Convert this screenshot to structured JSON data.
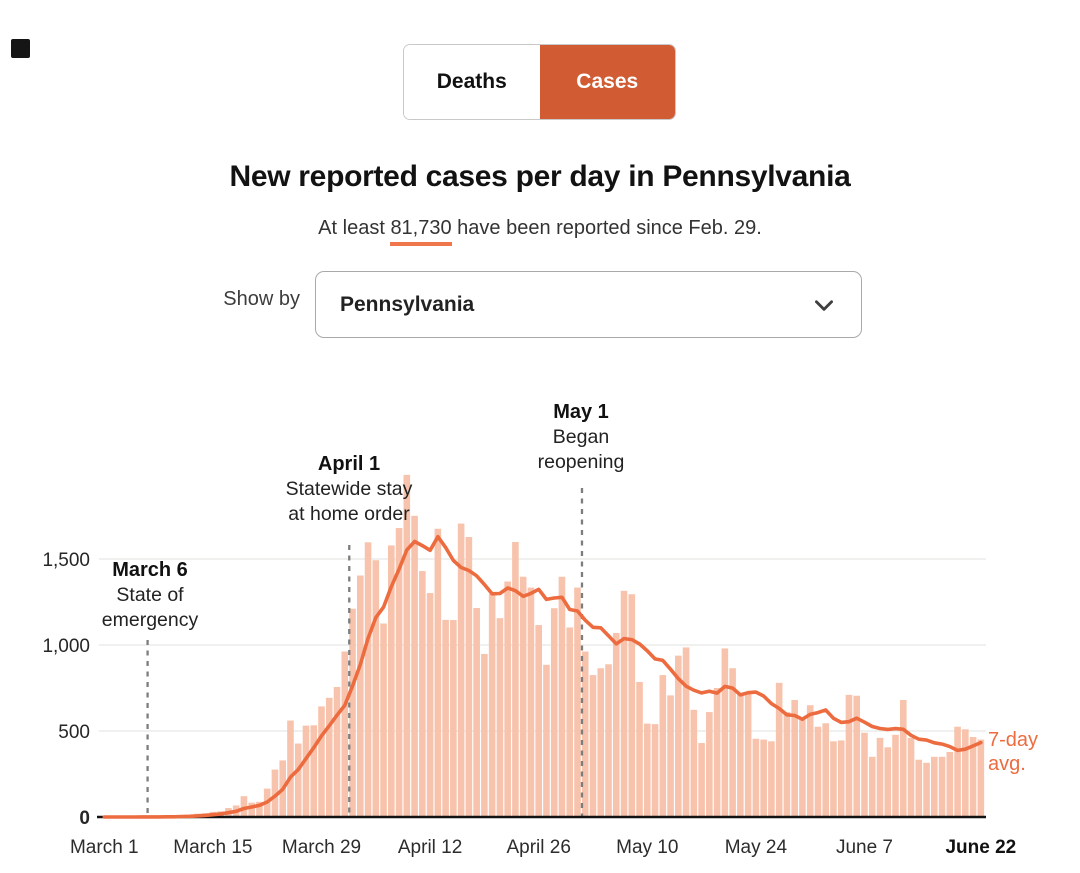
{
  "toggle": {
    "deaths_label": "Deaths",
    "cases_label": "Cases",
    "active": "Cases",
    "active_color": "#d15b33"
  },
  "header": {
    "title": "New reported cases per day in Pennsylvania",
    "subtitle_prefix": "At least ",
    "subtitle_highlight": "81,730",
    "subtitle_suffix": " have been reported since Feb. 29.",
    "highlight_underline_color": "#f0774b"
  },
  "controls": {
    "show_by_label": "Show by",
    "dropdown_value": "Pennsylvania",
    "dropdown_icon": "chevron-down-icon"
  },
  "chart_data": {
    "type": "bar",
    "title": "New reported cases per day in Pennsylvania",
    "x_domain": [
      "March 1",
      "June 22"
    ],
    "x_unit": "day",
    "ylabel": "new reported cases per day",
    "ylim": [
      0,
      2000
    ],
    "grid": true,
    "bar_color": "#f8c3ac",
    "line_color": "#ec6c40",
    "dash_color": "#7d7d7d",
    "daily_values": [
      0,
      0,
      0,
      0,
      0,
      2,
      2,
      1,
      3,
      2,
      10,
      9,
      19,
      22,
      30,
      33,
      52,
      67,
      121,
      83,
      88,
      165,
      276,
      329,
      561,
      427,
      531,
      533,
      643,
      693,
      756,
      962,
      1211,
      1404,
      1597,
      1493,
      1125,
      1579,
      1680,
      1989,
      1751,
      1430,
      1302,
      1676,
      1146,
      1145,
      1706,
      1628,
      1215,
      948,
      1296,
      1156,
      1369,
      1599,
      1397,
      1334,
      1116,
      885,
      1214,
      1397,
      1102,
      1334,
      962,
      825,
      865,
      888,
      1070,
      1315,
      1295,
      785,
      543,
      540,
      825,
      707,
      938,
      986,
      623,
      430,
      610,
      750,
      980,
      865,
      710,
      715,
      455,
      450,
      440,
      780,
      610,
      680,
      565,
      650,
      525,
      545,
      440,
      445,
      710,
      705,
      490,
      350,
      460,
      405,
      478,
      680,
      460,
      333,
      315,
      350,
      350,
      378,
      525,
      510,
      465,
      450
    ],
    "daily_values_start": "March 1",
    "peak_value": 1989,
    "overlay_line": {
      "name": "7-day avg.",
      "method": "trailing 7-day average of daily_values",
      "end_value_approx": 433
    },
    "line_label_lines": [
      "7-day",
      "avg."
    ],
    "x_ticks": [
      {
        "label": "March 1",
        "day_index": 0,
        "bold": false
      },
      {
        "label": "March 15",
        "day_index": 14,
        "bold": false
      },
      {
        "label": "March 29",
        "day_index": 28,
        "bold": false
      },
      {
        "label": "April 12",
        "day_index": 42,
        "bold": false
      },
      {
        "label": "April 26",
        "day_index": 56,
        "bold": false
      },
      {
        "label": "May 10",
        "day_index": 70,
        "bold": false
      },
      {
        "label": "May 24",
        "day_index": 84,
        "bold": false
      },
      {
        "label": "June 7",
        "day_index": 98,
        "bold": false
      },
      {
        "label": "June 22",
        "day_index": 113,
        "bold": true
      }
    ],
    "y_ticks": [
      {
        "label": "0",
        "value": 0,
        "bold": true
      },
      {
        "label": "500",
        "value": 500,
        "bold": false
      },
      {
        "label": "1,000",
        "value": 1000,
        "bold": false
      },
      {
        "label": "1,500",
        "value": 1500,
        "bold": false
      }
    ],
    "annotations": [
      {
        "title": "March 6",
        "lines": [
          "State of",
          "emergency"
        ],
        "day_index": 5
      },
      {
        "title": "April 1",
        "lines": [
          "Statewide stay",
          "at home order"
        ],
        "day_index": 31
      },
      {
        "title": "May 1",
        "lines": [
          "Began",
          "reopening"
        ],
        "day_index": 61
      }
    ]
  }
}
